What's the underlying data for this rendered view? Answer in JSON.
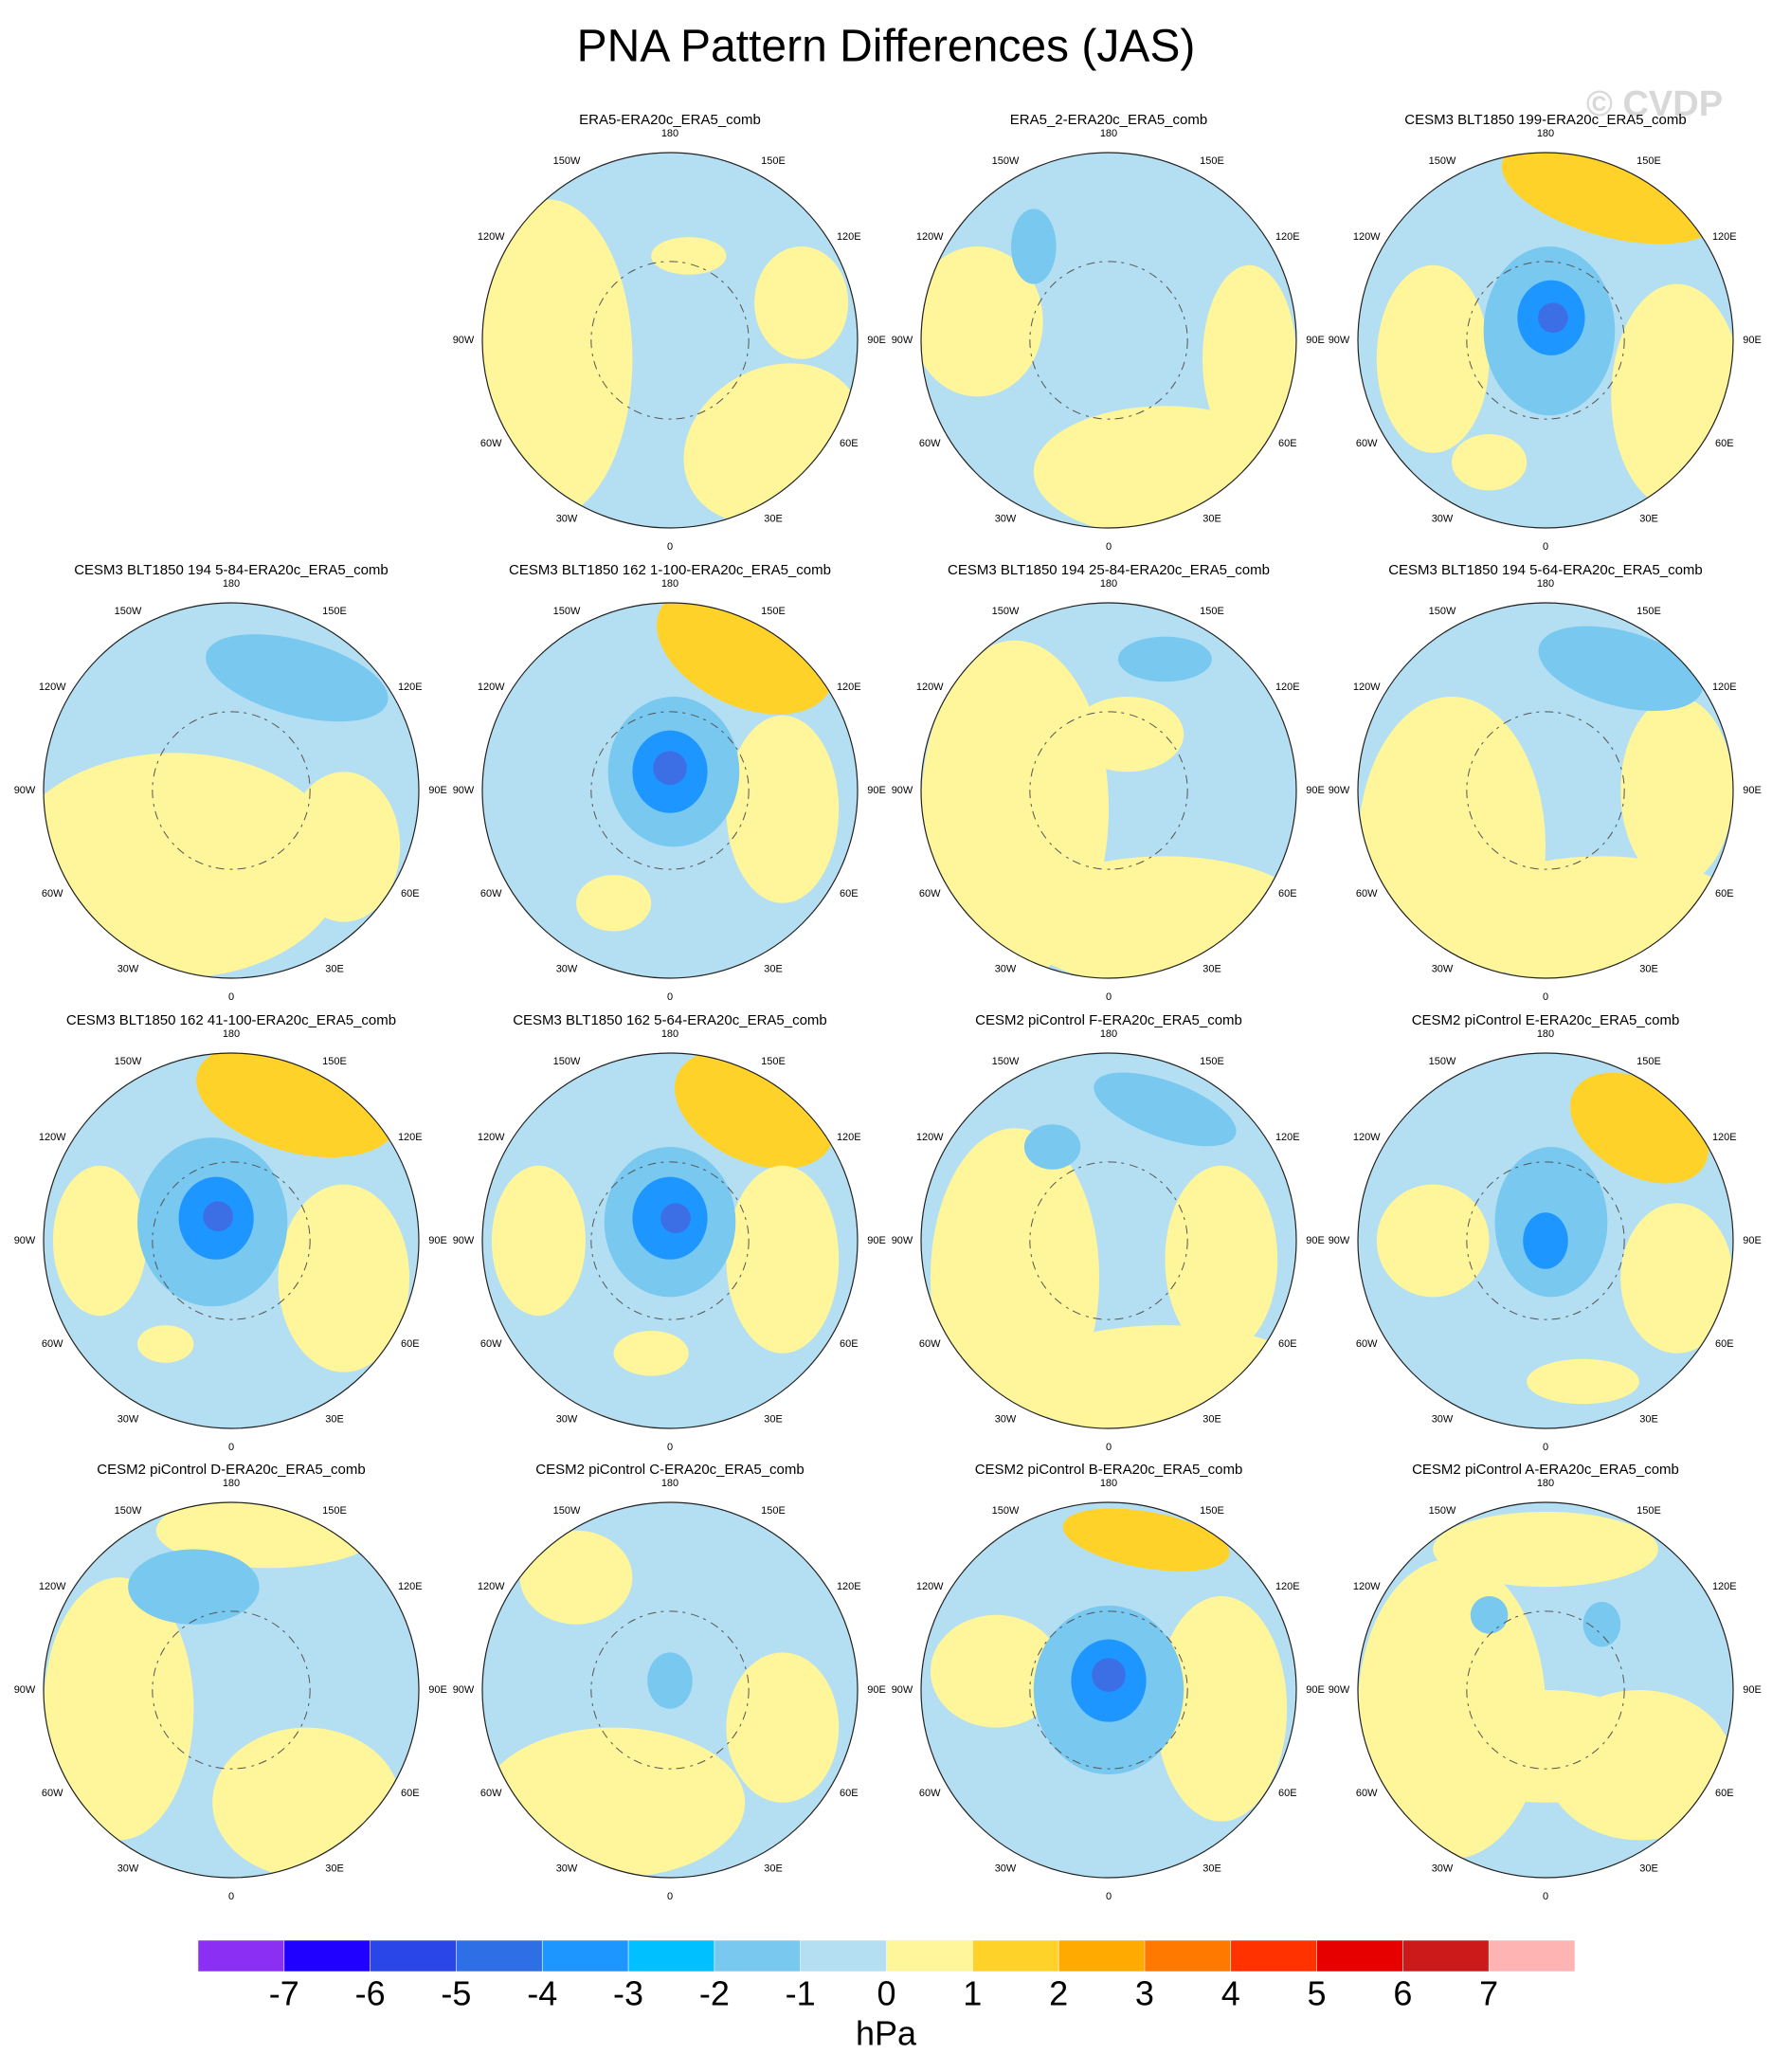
{
  "title": "PNA Pattern Differences (JAS)",
  "watermark": "© CVDP",
  "lon_labels": [
    "0",
    "30E",
    "60E",
    "90E",
    "120E",
    "150E",
    "180",
    "150W",
    "120W",
    "90W",
    "60W",
    "30W"
  ],
  "panels": [
    {
      "title": "ERA5-ERA20c_ERA5_comb"
    },
    {
      "title": "ERA5_2-ERA20c_ERA5_comb"
    },
    {
      "title": "CESM3 BLT1850 199-ERA20c_ERA5_comb"
    },
    {
      "title": "CESM3 BLT1850 194 5-84-ERA20c_ERA5_comb"
    },
    {
      "title": "CESM3 BLT1850 162 1-100-ERA20c_ERA5_comb"
    },
    {
      "title": "CESM3 BLT1850 194 25-84-ERA20c_ERA5_comb"
    },
    {
      "title": "CESM3 BLT1850 194 5-64-ERA20c_ERA5_comb"
    },
    {
      "title": "CESM3 BLT1850 162 41-100-ERA20c_ERA5_comb"
    },
    {
      "title": "CESM3 BLT1850 162 5-64-ERA20c_ERA5_comb"
    },
    {
      "title": "CESM2 piControl F-ERA20c_ERA5_comb"
    },
    {
      "title": "CESM2 piControl E-ERA20c_ERA5_comb"
    },
    {
      "title": "CESM2 piControl D-ERA20c_ERA5_comb"
    },
    {
      "title": "CESM2 piControl C-ERA20c_ERA5_comb"
    },
    {
      "title": "CESM2 piControl B-ERA20c_ERA5_comb"
    },
    {
      "title": "CESM2 piControl A-ERA20c_ERA5_comb"
    }
  ],
  "colorbar": {
    "levels": [
      -7,
      -6,
      -5,
      -4,
      -3,
      -2,
      -1,
      0,
      1,
      2,
      3,
      4,
      5,
      6,
      7
    ],
    "colors": [
      "#8b2ff5",
      "#2000ff",
      "#2a45e8",
      "#2f6fe6",
      "#1e96ff",
      "#00c0ff",
      "#78c8f0",
      "#b4dff2",
      "#fff59a",
      "#ffd22a",
      "#ffaa00",
      "#ff7800",
      "#ff3200",
      "#e60000",
      "#cc1a1a",
      "#ffb4b4"
    ],
    "units": "hPa"
  }
}
